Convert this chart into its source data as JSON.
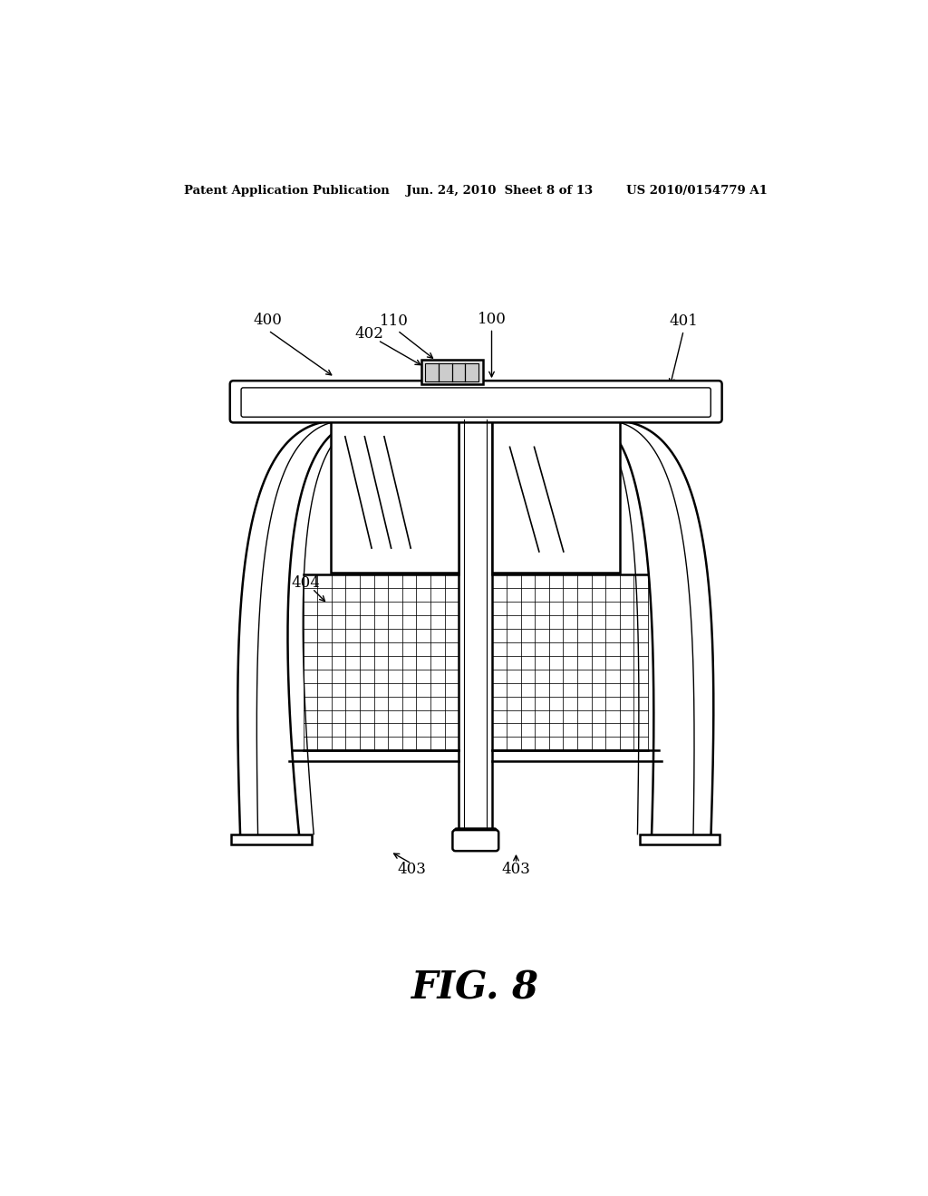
{
  "bg_color": "#ffffff",
  "line_color": "#000000",
  "header_text": "Patent Application Publication    Jun. 24, 2010  Sheet 8 of 13        US 2010/0154779 A1",
  "figure_label": "FIG. 8",
  "lw_main": 1.8,
  "lw_thin": 1.0,
  "lw_grid": 0.55
}
